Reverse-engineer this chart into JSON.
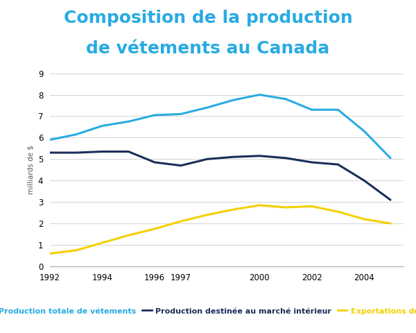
{
  "title_line1": "Composition de la production",
  "title_line2": "de vétements au Canada",
  "title_color": "#29abe2",
  "ylabel": "milliards de $",
  "ylim": [
    0,
    9
  ],
  "yticks": [
    0,
    1,
    2,
    3,
    4,
    5,
    6,
    7,
    8,
    9
  ],
  "xlabels": [
    "1992",
    "1994",
    "1996",
    "1997",
    "2000",
    "2002",
    "2004"
  ],
  "xtick_positions": [
    1992,
    1994,
    1996,
    1997,
    2000,
    2002,
    2004
  ],
  "years": [
    1992,
    1993,
    1994,
    1995,
    1996,
    1997,
    1998,
    1999,
    2000,
    2001,
    2002,
    2003,
    2004,
    2005
  ],
  "production_totale": [
    5.9,
    6.15,
    6.55,
    6.75,
    7.05,
    7.1,
    7.4,
    7.75,
    8.0,
    7.8,
    7.3,
    7.3,
    6.3,
    5.05
  ],
  "marche_interieur": [
    5.3,
    5.3,
    5.35,
    5.35,
    4.85,
    4.7,
    5.0,
    5.1,
    5.15,
    5.05,
    4.85,
    4.75,
    4.0,
    3.1
  ],
  "exportations": [
    0.6,
    0.75,
    1.1,
    1.45,
    1.75,
    2.1,
    2.4,
    2.65,
    2.85,
    2.75,
    2.8,
    2.55,
    2.2,
    2.0
  ],
  "color_totale": "#29abe2",
  "color_interieur": "#1a2e5a",
  "color_export": "#f5d000",
  "legend_label_totale": "Production totale de vétements",
  "legend_label_interieur": "Production destinée au marché intérieur",
  "legend_label_export": "Exportations de vêtements",
  "background_color": "#ffffff",
  "line_width": 2.2,
  "title_fontsize": 18,
  "tick_fontsize": 8.5,
  "ylabel_fontsize": 7.5,
  "legend_fontsize": 8
}
